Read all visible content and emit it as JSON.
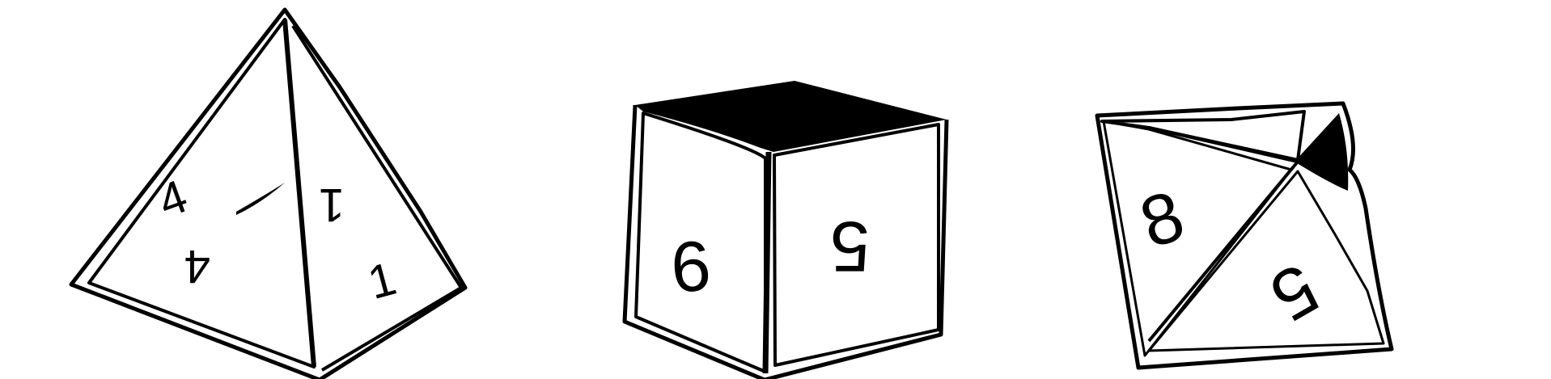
{
  "scene": {
    "background": "#ffffff",
    "ink": "#000000",
    "tetrahedron": {
      "numbers": [
        "4",
        "4",
        "1",
        "1"
      ]
    },
    "cube": {
      "numbers": [
        "6",
        "5"
      ]
    },
    "octahedron": {
      "numbers": [
        "8",
        "5"
      ]
    }
  }
}
